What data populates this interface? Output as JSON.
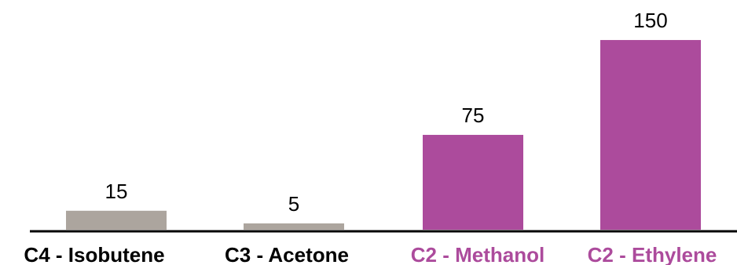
{
  "colors": {
    "gray_bar": "#aca59e",
    "purple_bar": "#ac4b9c",
    "black_text": "#000000",
    "purple_text": "#ac4b9c",
    "axis": "#000000"
  },
  "chart_data": {
    "type": "bar",
    "title": "",
    "xlabel": "",
    "ylabel": "",
    "ylim": [
      0,
      160
    ],
    "grid": false,
    "legend": "none",
    "categories": [
      "C4 - Isobutene",
      "C3 - Acetone",
      "C2 - Methanol",
      "C2 - Ethylene"
    ],
    "values": [
      15,
      5,
      75,
      150
    ],
    "value_labels": [
      "15",
      "5",
      "75",
      "150"
    ],
    "bar_colors": [
      "#aca59e",
      "#aca59e",
      "#ac4b9c",
      "#ac4b9c"
    ],
    "category_label_colors": [
      "#000000",
      "#000000",
      "#ac4b9c",
      "#ac4b9c"
    ]
  }
}
